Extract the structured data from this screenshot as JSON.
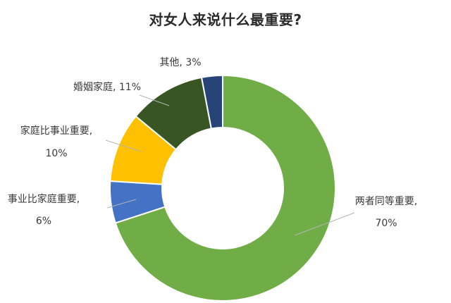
{
  "chart_data": {
    "type": "pie",
    "variant": "donut",
    "title": "对女人来说什么最重要?",
    "slices": [
      {
        "label": "两者同等重要",
        "value": 70,
        "value_text": "70%",
        "color": "#70ad47"
      },
      {
        "label": "事业比家庭重要",
        "value": 6,
        "value_text": "6%",
        "color": "#4472c4"
      },
      {
        "label": "家庭比事业重要",
        "value": 10,
        "value_text": "10%",
        "color": "#ffc000"
      },
      {
        "label": "婚姻家庭",
        "value": 11,
        "value_text": "11%",
        "color": "#375623"
      },
      {
        "label": "其他",
        "value": 3,
        "value_text": "3%",
        "color": "#264478"
      }
    ],
    "legend": "none"
  }
}
